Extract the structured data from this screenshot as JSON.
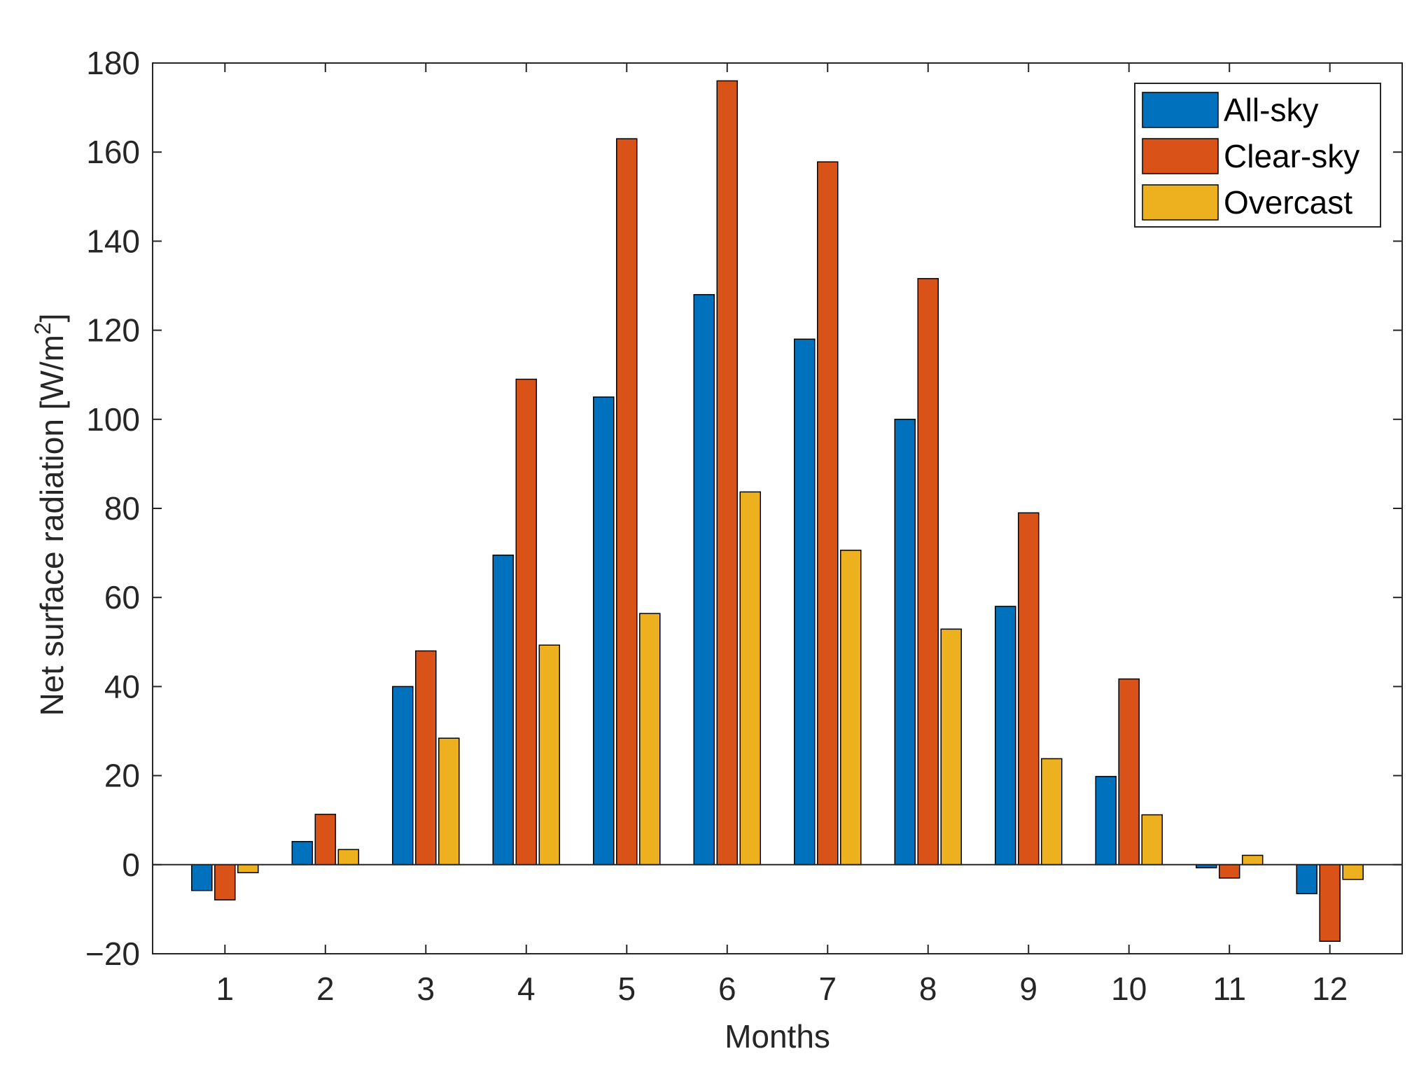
{
  "chart_data": {
    "type": "bar",
    "title": "",
    "xlabel": "Months",
    "ylabel": "Net surface radiation [W/m",
    "ylabel_superscript": "2",
    "ylabel_suffix": "]",
    "categories": [
      "1",
      "2",
      "3",
      "4",
      "5",
      "6",
      "7",
      "8",
      "9",
      "10",
      "11",
      "12"
    ],
    "ylim": [
      -20,
      180
    ],
    "yticks": [
      -20,
      0,
      20,
      40,
      60,
      80,
      100,
      120,
      140,
      160,
      180
    ],
    "ytick_labels": [
      "−20",
      "0",
      "20",
      "40",
      "60",
      "80",
      "100",
      "120",
      "140",
      "160",
      "180"
    ],
    "grid": false,
    "legend_position": "top-right",
    "series": [
      {
        "name": "All-sky",
        "color": "#0072BD",
        "values": [
          -5.8,
          5.2,
          40,
          69.5,
          105,
          128,
          118,
          100,
          58,
          19.8,
          -0.7,
          -6.5
        ]
      },
      {
        "name": "Clear-sky",
        "color": "#D95319",
        "values": [
          -7.9,
          11.3,
          48,
          109,
          163,
          176,
          157.8,
          131.6,
          79,
          41.7,
          -3,
          -17.2
        ]
      },
      {
        "name": "Overcast",
        "color": "#EDB120",
        "values": [
          -1.8,
          3.4,
          28.4,
          49.3,
          56.4,
          83.7,
          70.6,
          52.9,
          23.8,
          11.2,
          2.1,
          -3.3
        ]
      }
    ]
  }
}
